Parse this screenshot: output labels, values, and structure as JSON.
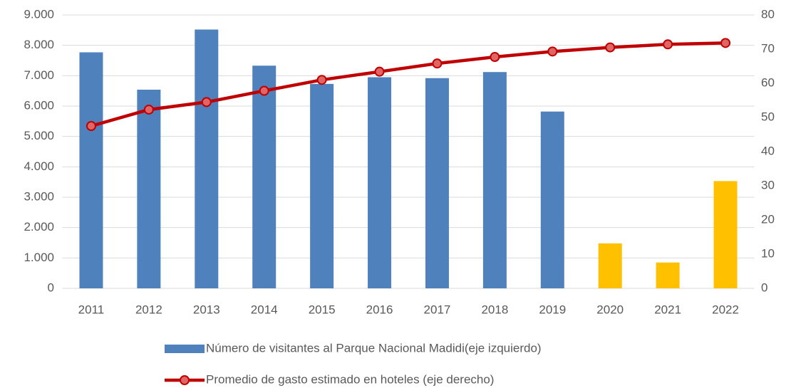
{
  "chart_data": {
    "type": "bar",
    "categories": [
      "2011",
      "2012",
      "2013",
      "2014",
      "2015",
      "2016",
      "2017",
      "2018",
      "2019",
      "2020",
      "2021",
      "2022"
    ],
    "series": [
      {
        "name": "Número de visitantes al Parque Nacional Madidi(eje izquierdo)",
        "type": "bar",
        "color": "#4f81bd",
        "colors": [
          "#4f81bd",
          "#4f81bd",
          "#4f81bd",
          "#4f81bd",
          "#4f81bd",
          "#4f81bd",
          "#4f81bd",
          "#4f81bd",
          "#4f81bd",
          "#ffc000",
          "#ffc000",
          "#ffc000"
        ],
        "values": [
          7770,
          6540,
          8520,
          7330,
          6730,
          6950,
          6920,
          7120,
          5820,
          1480,
          850,
          3530
        ]
      },
      {
        "name": "Promedio de gasto estimado en hoteles (eje derecho)",
        "type": "line",
        "axis": "y2",
        "color": "#c00000",
        "marker_color": "#e06666",
        "values": [
          47.5,
          52.3,
          54.5,
          57.8,
          61.0,
          63.4,
          65.8,
          67.7,
          69.3,
          70.5,
          71.4,
          71.8
        ]
      }
    ],
    "ylim": [
      0,
      9000
    ],
    "yticks": [
      0,
      {
        "value": 1000,
        "label": "1.000"
      },
      {
        "value": 2000,
        "label": "2.000"
      },
      {
        "value": 3000,
        "label": "3.000"
      },
      {
        "value": 4000,
        "label": "4.000"
      },
      {
        "value": 5000,
        "label": "5.000"
      },
      {
        "value": 6000,
        "label": "6.000"
      },
      {
        "value": 7000,
        "label": "7.000"
      },
      {
        "value": 8000,
        "label": "8.000"
      },
      {
        "value": 9000,
        "label": "9.000"
      }
    ],
    "y2lim": [
      0,
      80
    ],
    "y2ticks": [
      0,
      10,
      20,
      30,
      40,
      50,
      60,
      70,
      80
    ],
    "grid": true,
    "legend": "bottom"
  }
}
